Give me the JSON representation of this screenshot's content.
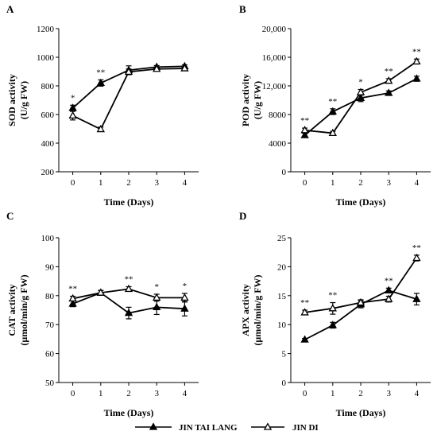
{
  "chart_data": [
    {
      "panel": "A",
      "type": "line",
      "x": [
        0,
        1,
        2,
        3,
        4
      ],
      "xlabel": "Time (Days)",
      "ylabel_lines": [
        "SOD activity",
        "(U/g FW)"
      ],
      "ylim": [
        200,
        1200
      ],
      "yticks": [
        200,
        400,
        600,
        800,
        1000,
        1200
      ],
      "ytick_labels": [
        "200",
        "400",
        "600",
        "800",
        "1000",
        "1200"
      ],
      "series": [
        {
          "name": "JIN TAI LANG",
          "marker": "filled-triangle",
          "values": [
            645,
            820,
            910,
            932,
            937
          ],
          "errors": [
            20,
            22,
            30,
            10,
            10
          ]
        },
        {
          "name": "JIN DI",
          "marker": "open-triangle",
          "values": [
            592,
            497,
            898,
            918,
            922
          ],
          "errors": [
            30,
            15,
            20,
            12,
            12
          ]
        }
      ],
      "significance": [
        {
          "x": 0,
          "label": "*"
        },
        {
          "x": 1,
          "label": "**"
        }
      ]
    },
    {
      "panel": "B",
      "type": "line",
      "x": [
        0,
        1,
        2,
        3,
        4
      ],
      "xlabel": "Time (Days)",
      "ylabel_lines": [
        "POD activity",
        "(U/g FW)"
      ],
      "ylim": [
        0,
        20000
      ],
      "yticks": [
        0,
        4000,
        8000,
        12000,
        16000,
        20000
      ],
      "ytick_labels": [
        "0",
        "4000",
        "8000",
        "12,000",
        "16,000",
        "20,000"
      ],
      "series": [
        {
          "name": "JIN TAI LANG",
          "marker": "filled-triangle",
          "values": [
            5100,
            8400,
            10300,
            11000,
            13000
          ],
          "errors": [
            300,
            400,
            500,
            300,
            350
          ]
        },
        {
          "name": "JIN DI",
          "marker": "open-triangle",
          "values": [
            5800,
            5400,
            11100,
            12700,
            15400
          ],
          "errors": [
            300,
            250,
            400,
            300,
            350
          ]
        }
      ],
      "significance": [
        {
          "x": 0,
          "label": "**"
        },
        {
          "x": 1,
          "label": "**"
        },
        {
          "x": 2,
          "label": "*"
        },
        {
          "x": 3,
          "label": "**"
        },
        {
          "x": 4,
          "label": "**"
        }
      ]
    },
    {
      "panel": "C",
      "type": "line",
      "x": [
        0,
        1,
        2,
        3,
        4
      ],
      "xlabel": "Time (Days)",
      "ylabel_lines": [
        "CAT activity",
        "(μmol/min/g FW)"
      ],
      "ylim": [
        50,
        100
      ],
      "yticks": [
        50,
        60,
        70,
        80,
        90,
        100
      ],
      "ytick_labels": [
        "50",
        "60",
        "70",
        "80",
        "90",
        "100"
      ],
      "series": [
        {
          "name": "JIN TAI LANG",
          "marker": "filled-triangle",
          "values": [
            77.2,
            81.0,
            74.0,
            76.0,
            75.5
          ],
          "errors": [
            1.0,
            0.8,
            2.0,
            2.5,
            2.5
          ]
        },
        {
          "name": "JIN DI",
          "marker": "open-triangle",
          "values": [
            79.0,
            81.0,
            82.3,
            79.3,
            79.3
          ],
          "errors": [
            0.8,
            0.8,
            0.8,
            1.2,
            1.5
          ]
        }
      ],
      "significance": [
        {
          "x": 0,
          "label": "**"
        },
        {
          "x": 2,
          "label": "**"
        },
        {
          "x": 3,
          "label": "*"
        },
        {
          "x": 4,
          "label": "*"
        }
      ]
    },
    {
      "panel": "D",
      "type": "line",
      "x": [
        0,
        1,
        2,
        3,
        4
      ],
      "xlabel": "Time (Days)",
      "ylabel_lines": [
        "APX activity",
        "(μmol/min/g FW)"
      ],
      "ylim": [
        0,
        25
      ],
      "yticks": [
        0,
        5,
        10,
        15,
        20,
        25
      ],
      "ytick_labels": [
        "0",
        "5",
        "10",
        "15",
        "20",
        "25"
      ],
      "series": [
        {
          "name": "JIN TAI LANG",
          "marker": "filled-triangle",
          "values": [
            7.4,
            9.9,
            13.5,
            15.9,
            14.4
          ],
          "errors": [
            0.2,
            0.5,
            0.6,
            0.4,
            1.0
          ]
        },
        {
          "name": "JIN DI",
          "marker": "open-triangle",
          "values": [
            12.1,
            12.8,
            13.8,
            14.4,
            21.5
          ],
          "errors": [
            0.4,
            1.0,
            0.5,
            0.5,
            0.5
          ]
        }
      ],
      "significance": [
        {
          "x": 0,
          "label": "**"
        },
        {
          "x": 1,
          "label": "**"
        },
        {
          "x": 3,
          "label": "**"
        },
        {
          "x": 4,
          "label": "**"
        }
      ]
    }
  ],
  "legend": {
    "placement": "bottom-center",
    "items": [
      {
        "name": "JIN TAI LANG",
        "marker": "filled-triangle"
      },
      {
        "name": "JIN DI",
        "marker": "open-triangle"
      }
    ]
  }
}
